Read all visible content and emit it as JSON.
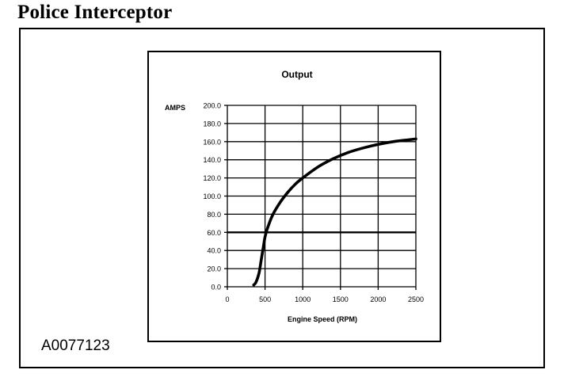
{
  "page": {
    "title": "Police Interceptor",
    "figure_id": "A0077123"
  },
  "chart_data": {
    "type": "line",
    "title": "Output",
    "xlabel": "Engine Speed (RPM)",
    "ylabel": "AMPS",
    "xlim": [
      0,
      2500
    ],
    "ylim": [
      0,
      200
    ],
    "x_ticks": [
      0,
      500,
      1000,
      1500,
      2000,
      2500
    ],
    "y_ticks": [
      0,
      20,
      40,
      60,
      80,
      100,
      120,
      140,
      160,
      180,
      200
    ],
    "x_tick_labels": [
      "0",
      "500",
      "1000",
      "1500",
      "2000",
      "2500"
    ],
    "y_tick_labels": [
      "0.0",
      "20.0",
      "40.0",
      "60.0",
      "80.0",
      "100.0",
      "120.0",
      "140.0",
      "160.0",
      "180.0",
      "200.0"
    ],
    "grid": true,
    "series": [
      {
        "x": [
          350,
          380,
          420,
          450,
          480,
          500,
          530,
          600,
          700,
          800,
          900,
          1000,
          1200,
          1400,
          1600,
          1800,
          2000,
          2200,
          2400,
          2500
        ],
        "y": [
          2,
          5,
          15,
          30,
          45,
          55,
          64,
          79,
          93,
          104,
          113,
          120,
          132,
          141,
          148,
          153,
          157,
          160,
          162,
          163
        ]
      }
    ],
    "reference_line": {
      "y": 60
    },
    "colors": {
      "line": "#000000",
      "grid": "#000000"
    }
  }
}
